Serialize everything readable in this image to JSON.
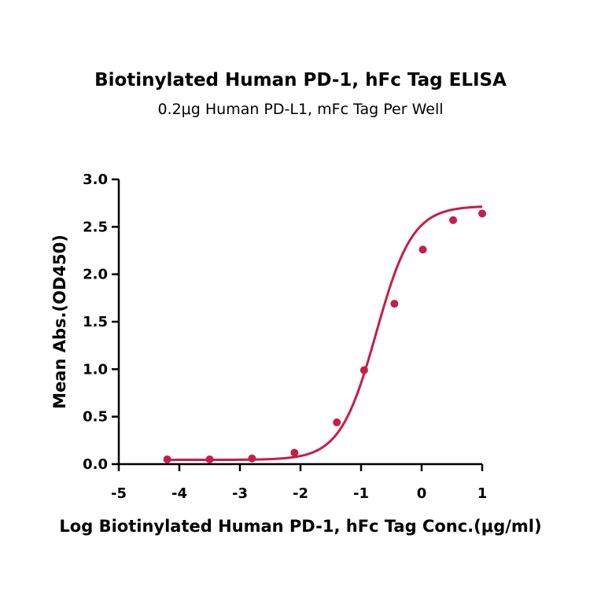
{
  "chart_data": {
    "type": "scatter",
    "title": "Biotinylated Human PD-1, hFc Tag ELISA",
    "subtitle": "0.2μg Human PD-L1, mFc Tag Per Well",
    "xlabel": "Log Biotinylated Human PD-1, hFc Tag Conc.(μg/ml)",
    "ylabel": "Mean Abs.(OD450)",
    "xlim": [
      -5,
      1
    ],
    "ylim": [
      0,
      3
    ],
    "x_ticks": [
      -5,
      -4,
      -3,
      -2,
      -1,
      0,
      1
    ],
    "y_ticks": [
      0.0,
      0.5,
      1.0,
      1.5,
      2.0,
      2.5,
      3.0
    ],
    "y_tick_labels": [
      "0.0",
      "0.5",
      "1.0",
      "1.5",
      "2.0",
      "2.5",
      "3.0"
    ],
    "grid": false,
    "series": [
      {
        "color": "#c41e4a",
        "x": [
          -4.2,
          -3.5,
          -2.8,
          -2.1,
          -1.4,
          -0.95,
          -0.45,
          0.02,
          0.52,
          1.0
        ],
        "y": [
          0.05,
          0.05,
          0.06,
          0.12,
          0.44,
          0.99,
          1.69,
          2.26,
          2.57,
          2.64
        ]
      }
    ],
    "fit": {
      "model": "4PL",
      "bottom": 0.045,
      "top": 2.72,
      "logEC50": -0.75,
      "hill": 1.45
    }
  }
}
